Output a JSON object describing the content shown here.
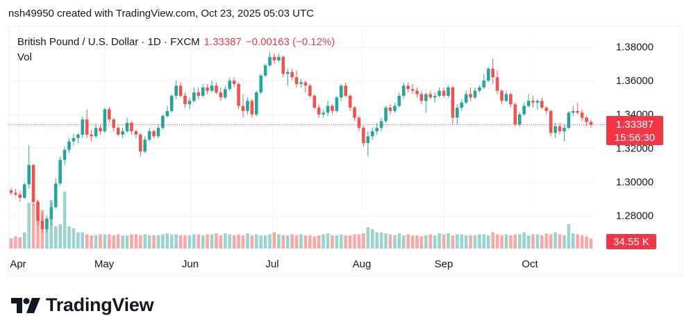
{
  "header": {
    "caption": "nsh49950 created with TradingView.com, Oct 23, 2025 05:03 UTC"
  },
  "legend": {
    "symbol": "British Pound / U.S. Dollar · 1D · FXCM",
    "last": "1.33387",
    "change": "−0.00163 (−0.12%)",
    "vol_label": "Vol"
  },
  "price_badge": {
    "price": "1.33387",
    "countdown": "15:56:30"
  },
  "volume_badge": "34.55 K",
  "brand": "TradingView",
  "colors": {
    "up": "#26a69a",
    "down": "#ef5350",
    "vol_up": "#9bd3cd",
    "vol_down": "#f7a9a7",
    "badge": "#f23645"
  },
  "chart_data": {
    "type": "candlestick",
    "symbol": "British Pound / U.S. Dollar",
    "interval": "1D",
    "y_ticks": [
      "1.38000",
      "1.36000",
      "1.34000",
      "1.32000",
      "1.30000",
      "1.28000"
    ],
    "x_ticks": [
      "Apr",
      "May",
      "Jun",
      "Jul",
      "Aug",
      "Sep",
      "Oct"
    ],
    "ylim": [
      1.2645,
      1.386
    ],
    "last_price": 1.33387,
    "candles": [
      [
        1.295,
        1.2965,
        1.292,
        1.2935
      ],
      [
        1.2935,
        1.296,
        1.2915,
        1.2925
      ],
      [
        1.2925,
        1.2945,
        1.288,
        1.2905
      ],
      [
        1.2905,
        1.2995,
        1.29,
        1.2985
      ],
      [
        1.2985,
        1.3215,
        1.296,
        1.31
      ],
      [
        1.31,
        1.3105,
        1.286,
        1.288
      ],
      [
        1.288,
        1.2895,
        1.274,
        1.277
      ],
      [
        1.277,
        1.281,
        1.27,
        1.272
      ],
      [
        1.272,
        1.28,
        1.27,
        1.278
      ],
      [
        1.278,
        1.288,
        1.274,
        1.285
      ],
      [
        1.285,
        1.302,
        1.284,
        1.299
      ],
      [
        1.299,
        1.315,
        1.298,
        1.313
      ],
      [
        1.313,
        1.321,
        1.31,
        1.319
      ],
      [
        1.319,
        1.326,
        1.317,
        1.324
      ],
      [
        1.324,
        1.3285,
        1.3215,
        1.326
      ],
      [
        1.326,
        1.329,
        1.323,
        1.328
      ],
      [
        1.328,
        1.3385,
        1.326,
        1.337
      ],
      [
        1.337,
        1.343,
        1.326,
        1.328
      ],
      [
        1.328,
        1.331,
        1.324,
        1.327
      ],
      [
        1.327,
        1.3345,
        1.326,
        1.332
      ],
      [
        1.332,
        1.334,
        1.328,
        1.33
      ],
      [
        1.33,
        1.344,
        1.329,
        1.343
      ],
      [
        1.343,
        1.3445,
        1.335,
        1.337
      ],
      [
        1.337,
        1.338,
        1.33,
        1.332
      ],
      [
        1.332,
        1.333,
        1.327,
        1.328
      ],
      [
        1.328,
        1.332,
        1.326,
        1.33
      ],
      [
        1.33,
        1.338,
        1.329,
        1.335
      ],
      [
        1.335,
        1.336,
        1.328,
        1.33
      ],
      [
        1.33,
        1.331,
        1.326,
        1.328
      ],
      [
        1.328,
        1.329,
        1.315,
        1.318
      ],
      [
        1.318,
        1.327,
        1.317,
        1.325
      ],
      [
        1.325,
        1.332,
        1.324,
        1.33
      ],
      [
        1.33,
        1.331,
        1.326,
        1.327
      ],
      [
        1.327,
        1.334,
        1.326,
        1.332
      ],
      [
        1.332,
        1.34,
        1.331,
        1.339
      ],
      [
        1.339,
        1.345,
        1.338,
        1.342
      ],
      [
        1.342,
        1.352,
        1.341,
        1.351
      ],
      [
        1.351,
        1.36,
        1.349,
        1.357
      ],
      [
        1.357,
        1.359,
        1.35,
        1.351
      ],
      [
        1.351,
        1.353,
        1.344,
        1.346
      ],
      [
        1.346,
        1.35,
        1.343,
        1.348
      ],
      [
        1.348,
        1.356,
        1.347,
        1.353
      ],
      [
        1.353,
        1.356,
        1.349,
        1.351
      ],
      [
        1.351,
        1.358,
        1.35,
        1.356
      ],
      [
        1.356,
        1.358,
        1.352,
        1.354
      ],
      [
        1.354,
        1.36,
        1.353,
        1.357
      ],
      [
        1.357,
        1.359,
        1.352,
        1.353
      ],
      [
        1.353,
        1.356,
        1.348,
        1.35
      ],
      [
        1.35,
        1.357,
        1.349,
        1.355
      ],
      [
        1.355,
        1.362,
        1.354,
        1.36
      ],
      [
        1.36,
        1.362,
        1.356,
        1.358
      ],
      [
        1.358,
        1.359,
        1.343,
        1.345
      ],
      [
        1.345,
        1.352,
        1.338,
        1.342
      ],
      [
        1.342,
        1.35,
        1.34,
        1.348
      ],
      [
        1.348,
        1.349,
        1.338,
        1.34
      ],
      [
        1.34,
        1.354,
        1.339,
        1.353
      ],
      [
        1.353,
        1.364,
        1.352,
        1.363
      ],
      [
        1.363,
        1.37,
        1.362,
        1.369
      ],
      [
        1.369,
        1.377,
        1.368,
        1.374
      ],
      [
        1.374,
        1.376,
        1.37,
        1.372
      ],
      [
        1.372,
        1.376,
        1.371,
        1.374
      ],
      [
        1.374,
        1.375,
        1.362,
        1.364
      ],
      [
        1.364,
        1.367,
        1.357,
        1.365
      ],
      [
        1.365,
        1.367,
        1.36,
        1.362
      ],
      [
        1.362,
        1.366,
        1.356,
        1.358
      ],
      [
        1.358,
        1.361,
        1.356,
        1.359
      ],
      [
        1.359,
        1.36,
        1.353,
        1.357
      ],
      [
        1.357,
        1.358,
        1.35,
        1.351
      ],
      [
        1.351,
        1.352,
        1.343,
        1.344
      ],
      [
        1.344,
        1.346,
        1.338,
        1.34
      ],
      [
        1.34,
        1.343,
        1.338,
        1.341
      ],
      [
        1.341,
        1.348,
        1.339,
        1.345
      ],
      [
        1.345,
        1.346,
        1.34,
        1.342
      ],
      [
        1.342,
        1.351,
        1.341,
        1.35
      ],
      [
        1.35,
        1.358,
        1.348,
        1.357
      ],
      [
        1.357,
        1.359,
        1.35,
        1.351
      ],
      [
        1.351,
        1.352,
        1.342,
        1.344
      ],
      [
        1.344,
        1.345,
        1.336,
        1.338
      ],
      [
        1.338,
        1.339,
        1.33,
        1.332
      ],
      [
        1.332,
        1.333,
        1.321,
        1.323
      ],
      [
        1.323,
        1.33,
        1.315,
        1.327
      ],
      [
        1.327,
        1.332,
        1.325,
        1.33
      ],
      [
        1.33,
        1.335,
        1.328,
        1.332
      ],
      [
        1.332,
        1.338,
        1.33,
        1.336
      ],
      [
        1.336,
        1.345,
        1.335,
        1.344
      ],
      [
        1.344,
        1.346,
        1.34,
        1.342
      ],
      [
        1.342,
        1.347,
        1.341,
        1.345
      ],
      [
        1.345,
        1.353,
        1.344,
        1.351
      ],
      [
        1.351,
        1.359,
        1.349,
        1.357
      ],
      [
        1.357,
        1.359,
        1.353,
        1.355
      ],
      [
        1.355,
        1.358,
        1.352,
        1.354
      ],
      [
        1.354,
        1.356,
        1.35,
        1.352
      ],
      [
        1.352,
        1.354,
        1.346,
        1.348
      ],
      [
        1.348,
        1.353,
        1.341,
        1.352
      ],
      [
        1.352,
        1.354,
        1.349,
        1.35
      ],
      [
        1.35,
        1.353,
        1.347,
        1.351
      ],
      [
        1.351,
        1.356,
        1.35,
        1.354
      ],
      [
        1.354,
        1.356,
        1.35,
        1.351
      ],
      [
        1.351,
        1.357,
        1.35,
        1.356
      ],
      [
        1.356,
        1.357,
        1.334,
        1.338
      ],
      [
        1.338,
        1.346,
        1.334,
        1.344
      ],
      [
        1.344,
        1.349,
        1.342,
        1.347
      ],
      [
        1.347,
        1.354,
        1.346,
        1.352
      ],
      [
        1.352,
        1.356,
        1.348,
        1.35
      ],
      [
        1.35,
        1.356,
        1.349,
        1.354
      ],
      [
        1.354,
        1.357,
        1.353,
        1.356
      ],
      [
        1.356,
        1.364,
        1.355,
        1.36
      ],
      [
        1.36,
        1.368,
        1.359,
        1.367
      ],
      [
        1.367,
        1.373,
        1.358,
        1.362
      ],
      [
        1.362,
        1.366,
        1.352,
        1.354
      ],
      [
        1.354,
        1.355,
        1.346,
        1.348
      ],
      [
        1.348,
        1.354,
        1.347,
        1.352
      ],
      [
        1.352,
        1.353,
        1.344,
        1.346
      ],
      [
        1.346,
        1.347,
        1.333,
        1.334
      ],
      [
        1.334,
        1.341,
        1.333,
        1.34
      ],
      [
        1.34,
        1.347,
        1.339,
        1.345
      ],
      [
        1.345,
        1.352,
        1.344,
        1.348
      ],
      [
        1.348,
        1.351,
        1.344,
        1.347
      ],
      [
        1.347,
        1.349,
        1.343,
        1.348
      ],
      [
        1.348,
        1.35,
        1.343,
        1.344
      ],
      [
        1.344,
        1.345,
        1.34,
        1.342
      ],
      [
        1.342,
        1.343,
        1.327,
        1.329
      ],
      [
        1.329,
        1.335,
        1.326,
        1.333
      ],
      [
        1.333,
        1.335,
        1.328,
        1.33
      ],
      [
        1.33,
        1.334,
        1.324,
        1.332
      ],
      [
        1.332,
        1.342,
        1.331,
        1.341
      ],
      [
        1.341,
        1.345,
        1.339,
        1.342
      ],
      [
        1.342,
        1.347,
        1.34,
        1.341
      ],
      [
        1.341,
        1.343,
        1.336,
        1.338
      ],
      [
        1.338,
        1.339,
        1.333,
        1.3355
      ],
      [
        1.3355,
        1.337,
        1.332,
        1.3339
      ]
    ],
    "volumes": [
      10,
      12,
      11,
      16,
      45,
      44,
      47,
      38,
      30,
      48,
      22,
      24,
      56,
      22,
      20,
      16,
      16,
      14,
      13,
      13,
      14,
      14,
      14,
      13,
      14,
      13,
      13,
      14,
      14,
      13,
      14,
      13,
      13,
      13,
      14,
      15,
      14,
      14,
      13,
      13,
      13,
      14,
      14,
      13,
      14,
      14,
      15,
      13,
      15,
      14,
      13,
      14,
      13,
      15,
      13,
      14,
      13,
      13,
      14,
      16,
      14,
      13,
      13,
      14,
      13,
      14,
      13,
      13,
      12,
      13,
      14,
      15,
      13,
      13,
      14,
      13,
      13,
      14,
      14,
      15,
      21,
      19,
      16,
      16,
      15,
      14,
      13,
      15,
      13,
      14,
      13,
      13,
      12,
      13,
      14,
      13,
      15,
      14,
      15,
      13,
      14,
      14,
      13,
      13,
      13,
      14,
      14,
      13,
      16,
      14,
      13,
      14,
      13,
      14,
      14,
      16,
      13,
      14,
      14,
      13,
      15,
      14,
      16,
      14,
      13,
      24,
      15,
      14,
      13,
      12,
      10
    ]
  }
}
